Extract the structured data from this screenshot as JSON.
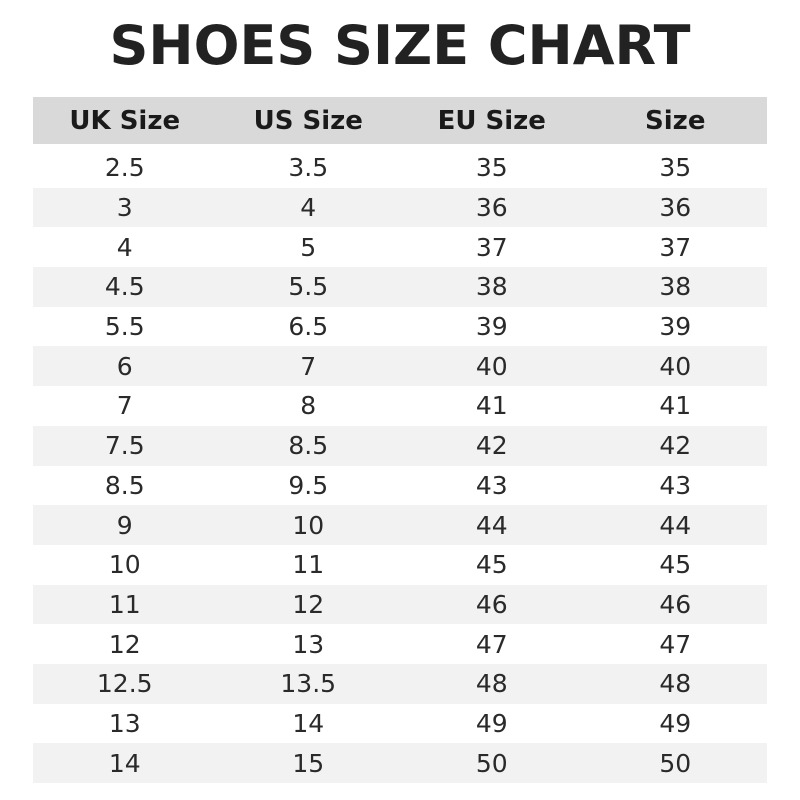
{
  "title": "SHOES SIZE CHART",
  "columns": [
    "UK Size",
    "US Size",
    "EU Size",
    "Size"
  ],
  "rows": [
    [
      "2.5",
      "3.5",
      "35",
      "35"
    ],
    [
      "3",
      "4",
      "36",
      "36"
    ],
    [
      "4",
      "5",
      "37",
      "37"
    ],
    [
      "4.5",
      "5.5",
      "38",
      "38"
    ],
    [
      "5.5",
      "6.5",
      "39",
      "39"
    ],
    [
      "6",
      "7",
      "40",
      "40"
    ],
    [
      "7",
      "8",
      "41",
      "41"
    ],
    [
      "7.5",
      "8.5",
      "42",
      "42"
    ],
    [
      "8.5",
      "9.5",
      "43",
      "43"
    ],
    [
      "9",
      "10",
      "44",
      "44"
    ],
    [
      "10",
      "11",
      "45",
      "45"
    ],
    [
      "11",
      "12",
      "46",
      "46"
    ],
    [
      "12",
      "13",
      "47",
      "47"
    ],
    [
      "12.5",
      "13.5",
      "48",
      "48"
    ],
    [
      "13",
      "14",
      "49",
      "49"
    ],
    [
      "14",
      "15",
      "50",
      "50"
    ]
  ],
  "colors": {
    "header_bg": "#d9d9d9",
    "stripe_bg": "#f2f2f2",
    "text": "#222222"
  }
}
